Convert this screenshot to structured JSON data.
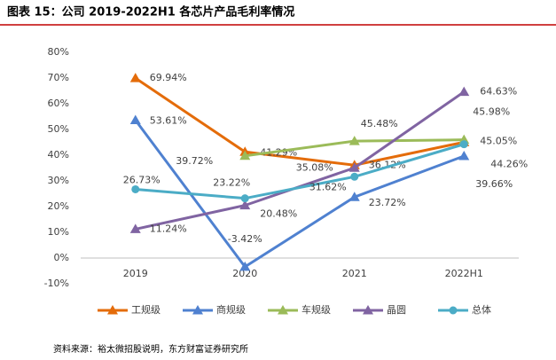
{
  "chart_data": {
    "type": "line",
    "title": "图表 15：公司 2019-2022H1 各芯片产品毛利率情况",
    "source": "资料来源：裕太微招股说明，东方财富证券研究所",
    "categories": [
      "2019",
      "2020",
      "2021",
      "2022H1"
    ],
    "ylim": [
      -10,
      80
    ],
    "yticks": [
      {
        "value": -10,
        "label": "-10%"
      },
      {
        "value": 0,
        "label": "0%"
      },
      {
        "value": 10,
        "label": "10%"
      },
      {
        "value": 20,
        "label": "20%"
      },
      {
        "value": 30,
        "label": "30%"
      },
      {
        "value": 40,
        "label": "40%"
      },
      {
        "value": 50,
        "label": "50%"
      },
      {
        "value": 60,
        "label": "60%"
      },
      {
        "value": 70,
        "label": "70%"
      },
      {
        "value": 80,
        "label": "80%"
      }
    ],
    "series": [
      {
        "name": "工规级",
        "color": "#E46C0A",
        "marker": "triangle",
        "values": [
          69.94,
          41.29,
          36.12,
          45.05
        ],
        "value_labels": [
          "69.94%",
          "41.29%",
          "36.12%",
          "45.05%"
        ]
      },
      {
        "name": "商规级",
        "color": "#4F81D0",
        "marker": "triangle",
        "values": [
          53.61,
          -3.42,
          23.72,
          39.66
        ],
        "value_labels": [
          "53.61%",
          "-3.42%",
          "23.72%",
          "39.66%"
        ]
      },
      {
        "name": "车规级",
        "color": "#9BBB59",
        "marker": "triangle",
        "values": [
          null,
          39.72,
          45.48,
          45.98
        ],
        "value_labels": [
          null,
          "39.72%",
          "45.48%",
          "45.98%"
        ]
      },
      {
        "name": "晶圆",
        "color": "#8064A2",
        "marker": "triangle",
        "values": [
          11.24,
          20.48,
          35.08,
          64.63
        ],
        "value_labels": [
          "11.24%",
          "20.48%",
          "35.08%",
          "64.63%"
        ]
      },
      {
        "name": "总体",
        "color": "#4BACC6",
        "marker": "circle",
        "values": [
          26.73,
          23.22,
          31.62,
          44.26
        ],
        "value_labels": [
          "26.73%",
          "23.22%",
          "31.62%",
          "44.26%"
        ]
      }
    ]
  }
}
